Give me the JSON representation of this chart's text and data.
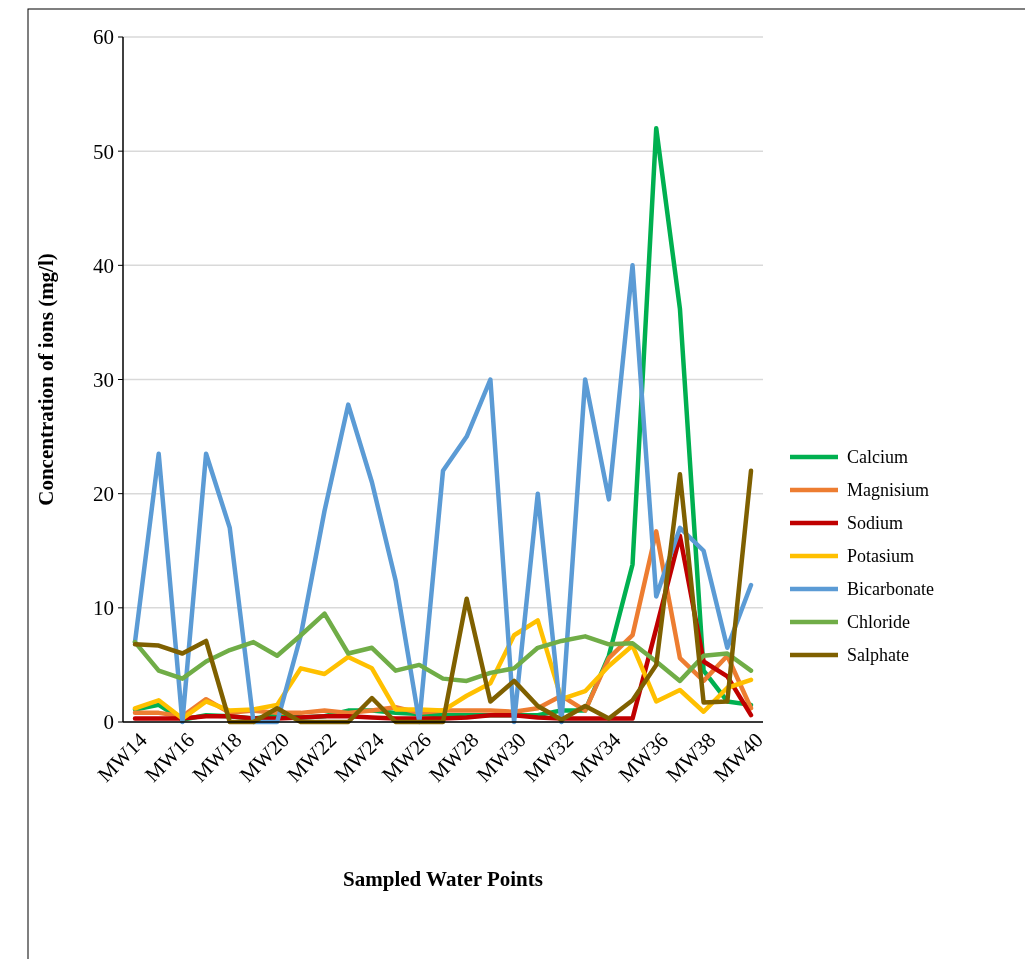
{
  "chart_data": {
    "type": "line",
    "xlabel": "Sampled Water Points",
    "ylabel": "Concentration of ions (mg/l)",
    "categories": [
      "MW14",
      null,
      "MW16",
      null,
      "MW18",
      null,
      "MW20",
      null,
      "MW22",
      null,
      "MW24",
      null,
      "MW26",
      null,
      "MW28",
      null,
      "MW30",
      null,
      "MW32",
      null,
      "MW34",
      null,
      "MW36",
      null,
      "MW38",
      null,
      "MW40"
    ],
    "series": [
      {
        "name": "Calcium",
        "color": "#00b050",
        "values": [
          1.1,
          1.5,
          0.2,
          0.6,
          0.5,
          0.3,
          0.6,
          0.4,
          0.5,
          1.0,
          1.0,
          0.8,
          0.7,
          0.6,
          0.6,
          0.6,
          0.6,
          0.6,
          1.0,
          1.0,
          5.8,
          13.8,
          52,
          36.2,
          4.5,
          1.8,
          1.5
        ]
      },
      {
        "name": "Magnisium",
        "color": "#ed7d31",
        "values": [
          0.8,
          0.8,
          0.5,
          2.0,
          0.8,
          1.0,
          0.8,
          0.8,
          1.0,
          0.8,
          1.0,
          1.3,
          0.8,
          1.0,
          1.0,
          1.0,
          0.9,
          1.2,
          2.3,
          1.0,
          5.6,
          7.6,
          16.7,
          5.6,
          3.6,
          5.8,
          1.2
        ]
      },
      {
        "name": "Sodium",
        "color": "#c00000",
        "values": [
          0.3,
          0.3,
          0.3,
          0.5,
          0.5,
          0.3,
          0.3,
          0.4,
          0.5,
          0.5,
          0.4,
          0.3,
          0.3,
          0.3,
          0.4,
          0.6,
          0.6,
          0.4,
          0.3,
          0.3,
          0.3,
          0.3,
          8.2,
          16.3,
          5.3,
          4.0,
          0.6
        ]
      },
      {
        "name": "Potasium",
        "color": "#ffc000",
        "values": [
          1.2,
          1.9,
          0.3,
          1.8,
          1.0,
          1.1,
          1.5,
          4.7,
          4.2,
          5.7,
          4.7,
          1.1,
          1.1,
          1.0,
          2.3,
          3.4,
          7.6,
          8.9,
          2.0,
          2.7,
          4.9,
          6.7,
          1.8,
          2.8,
          0.9,
          3.0,
          3.7
        ]
      },
      {
        "name": "Bicarbonate",
        "color": "#5b9bd5",
        "values": [
          7,
          23.5,
          0,
          23.5,
          17,
          0,
          0,
          7.6,
          18.5,
          27.8,
          21,
          12.4,
          0,
          22,
          25,
          30,
          0,
          20,
          0,
          30,
          19.5,
          40,
          11,
          17,
          15,
          6.5,
          12
        ]
      },
      {
        "name": "Chloride",
        "color": "#70ad47",
        "values": [
          7,
          4.5,
          3.8,
          5.3,
          6.3,
          7.0,
          5.8,
          7.6,
          9.5,
          6.0,
          6.5,
          4.5,
          5.0,
          3.8,
          3.6,
          4.3,
          4.7,
          6.5,
          7.1,
          7.5,
          6.8,
          6.9,
          5.3,
          3.6,
          5.8,
          6.0,
          4.5
        ]
      },
      {
        "name": "Salphate",
        "color": "#7f6000",
        "values": [
          6.8,
          6.7,
          6.0,
          7.1,
          0,
          0,
          1.2,
          0,
          0,
          0,
          2.1,
          0,
          0,
          0,
          10.8,
          1.8,
          3.6,
          1.4,
          0.2,
          1.4,
          0.3,
          1.9,
          5.0,
          21.7,
          1.7,
          1.8,
          22
        ]
      }
    ],
    "ylim": [
      0,
      60
    ],
    "yticks": [
      0,
      10,
      20,
      30,
      40,
      50,
      60
    ],
    "grid": "y",
    "legend": "right",
    "marker": "none",
    "line_style": "solid"
  }
}
